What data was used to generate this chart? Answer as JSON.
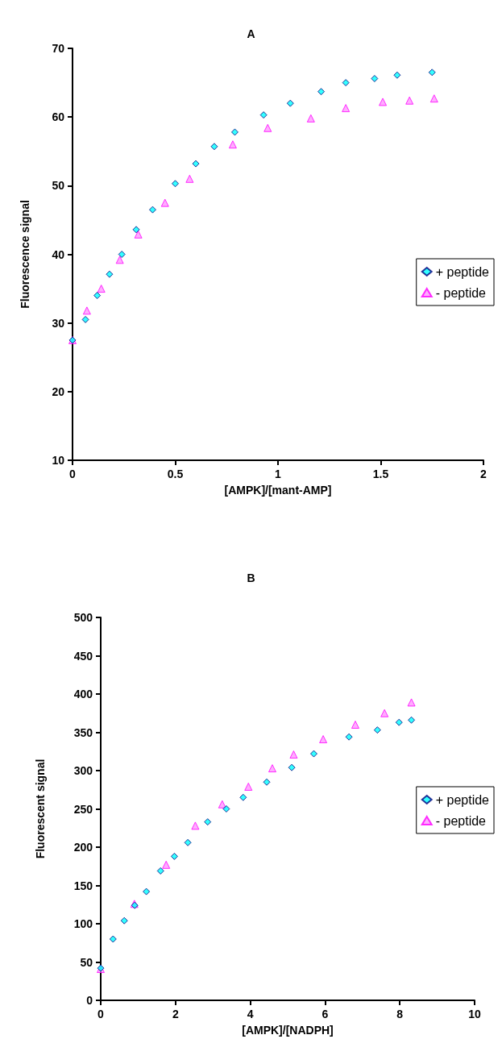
{
  "chart_data": [
    {
      "type": "scatter",
      "title": "A",
      "xlabel": "[AMPK]/[mant-AMP]",
      "ylabel": "Fluorescence signal",
      "xlim": [
        0,
        2
      ],
      "xticks": [
        0,
        0.5,
        1,
        1.5,
        2
      ],
      "ylim": [
        10,
        70
      ],
      "yticks": [
        10,
        20,
        30,
        40,
        50,
        60,
        70
      ],
      "grid": false,
      "legend": "right",
      "series": [
        {
          "name": "+ peptide",
          "color": "#00ffff",
          "marker": "diamond",
          "x": [
            0,
            0.063,
            0.12,
            0.18,
            0.24,
            0.31,
            0.39,
            0.5,
            0.6,
            0.69,
            0.79,
            0.93,
            1.06,
            1.21,
            1.33,
            1.47,
            1.58,
            1.75
          ],
          "values": [
            27.5,
            30.5,
            34,
            37.1,
            40,
            43.6,
            46.5,
            50.3,
            53.2,
            55.7,
            57.8,
            60.3,
            62,
            63.7,
            65,
            65.6,
            66.1,
            66.5
          ]
        },
        {
          "name": "- peptide",
          "color": "#ff99ff",
          "marker": "triangle",
          "x": [
            0,
            0.07,
            0.14,
            0.23,
            0.32,
            0.45,
            0.57,
            0.78,
            0.95,
            1.16,
            1.33,
            1.51,
            1.64,
            1.76
          ],
          "values": [
            27.5,
            31.8,
            35,
            39.2,
            42.9,
            47.5,
            51,
            56,
            58.4,
            59.8,
            61.3,
            62.2,
            62.4,
            62.7
          ]
        }
      ]
    },
    {
      "type": "scatter",
      "title": "B",
      "xlabel": "[AMPK]/[NADPH]",
      "ylabel": "Fluorescent signal",
      "xlim": [
        0,
        10
      ],
      "xticks": [
        0,
        2,
        4,
        6,
        8,
        10
      ],
      "ylim": [
        0,
        500
      ],
      "yticks": [
        0,
        50,
        100,
        150,
        200,
        250,
        300,
        350,
        400,
        450,
        500
      ],
      "grid": false,
      "legend": "right",
      "series": [
        {
          "name": "+ peptide",
          "color": "#00ffff",
          "marker": "diamond",
          "x": [
            0,
            0.33,
            0.63,
            0.91,
            1.22,
            1.6,
            1.97,
            2.33,
            2.86,
            3.36,
            3.81,
            4.44,
            5.11,
            5.7,
            6.64,
            7.4,
            7.98,
            8.31
          ],
          "values": [
            42,
            80,
            104,
            124,
            142,
            169,
            188,
            206,
            233,
            250,
            265,
            285,
            304,
            322,
            344,
            353,
            363,
            366
          ]
        },
        {
          "name": "- peptide",
          "color": "#ff99ff",
          "marker": "triangle",
          "x": [
            0,
            0.9,
            1.75,
            2.53,
            3.25,
            3.95,
            4.59,
            5.16,
            5.95,
            6.81,
            7.59,
            8.31
          ],
          "values": [
            41,
            126,
            177,
            228,
            256,
            279,
            303,
            321,
            341,
            360,
            375,
            389
          ]
        }
      ]
    }
  ]
}
